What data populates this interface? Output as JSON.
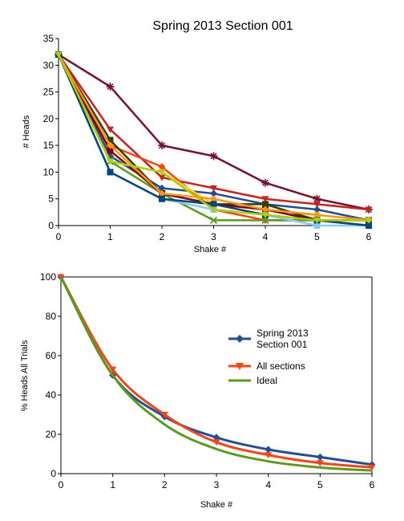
{
  "chart_data": [
    {
      "type": "line",
      "title": "Spring 2013 Section 001",
      "xlabel": "Shake #",
      "ylabel": "# Heads",
      "x": [
        0,
        1,
        2,
        3,
        4,
        5,
        6
      ],
      "xlim": [
        0,
        6
      ],
      "ylim": [
        0,
        35
      ],
      "yticks": [
        0,
        5,
        10,
        15,
        20,
        25,
        30,
        35
      ],
      "grid": false,
      "legend": "none",
      "series": [
        {
          "color": "#7a0f2a",
          "marker": "star",
          "values": [
            32,
            26,
            15,
            13,
            8,
            5,
            3
          ]
        },
        {
          "color": "#c9211e",
          "marker": "triangle",
          "values": [
            32,
            18,
            9,
            7,
            5,
            4,
            3
          ]
        },
        {
          "color": "#1e4d9b",
          "marker": "diamond",
          "values": [
            32,
            13,
            7,
            6,
            4,
            3,
            1
          ]
        },
        {
          "color": "#ff420e",
          "marker": "diamond",
          "values": [
            32,
            15,
            11,
            3,
            1,
            1,
            0
          ]
        },
        {
          "color": "#ffd320",
          "marker": "triangle",
          "values": [
            32,
            12,
            10,
            4,
            3,
            2,
            1
          ]
        },
        {
          "color": "#579d1c",
          "marker": "x",
          "values": [
            32,
            12,
            6,
            1,
            1,
            1,
            1
          ]
        },
        {
          "color": "#314004",
          "marker": "square",
          "values": [
            32,
            16,
            6,
            4,
            4,
            1,
            1
          ]
        },
        {
          "color": "#7e0021",
          "marker": "square",
          "values": [
            32,
            14,
            6,
            4,
            3,
            1,
            0
          ]
        },
        {
          "color": "#ff950e",
          "marker": "diamond",
          "values": [
            32,
            15,
            6,
            5,
            3,
            2,
            1
          ]
        },
        {
          "color": "#83caff",
          "marker": "square",
          "values": [
            32,
            10,
            5,
            3,
            2,
            0,
            0
          ]
        },
        {
          "color": "#004586",
          "marker": "square",
          "values": [
            32,
            10,
            5,
            4,
            2,
            1,
            0
          ]
        },
        {
          "color": "#aecf00",
          "marker": "triangle",
          "values": [
            32,
            12,
            10,
            3,
            2,
            1,
            1
          ]
        }
      ]
    },
    {
      "type": "line",
      "title": "",
      "xlabel": "Shake #",
      "ylabel": "% Heads All Trials",
      "x": [
        0,
        1,
        2,
        3,
        4,
        5,
        6
      ],
      "xlim": [
        0,
        6
      ],
      "ylim": [
        0,
        100
      ],
      "yticks": [
        0,
        20,
        40,
        60,
        80,
        100
      ],
      "grid": false,
      "legend": "right",
      "series": [
        {
          "name": "Spring 2013 Section 001",
          "color": "#1f4e9c",
          "marker": "diamond",
          "values": [
            100,
            50,
            29,
            18.4,
            12.3,
            8.4,
            4.6
          ]
        },
        {
          "name": "All sections",
          "color": "#ff420e",
          "marker": "triangle",
          "values": [
            100,
            53,
            30,
            16,
            9.5,
            5.4,
            3.2
          ]
        },
        {
          "name": "Ideal",
          "color": "#579d1c",
          "marker": "none",
          "values": [
            100,
            50,
            25,
            12.5,
            6.25,
            3.125,
            1.5625
          ]
        }
      ]
    }
  ]
}
